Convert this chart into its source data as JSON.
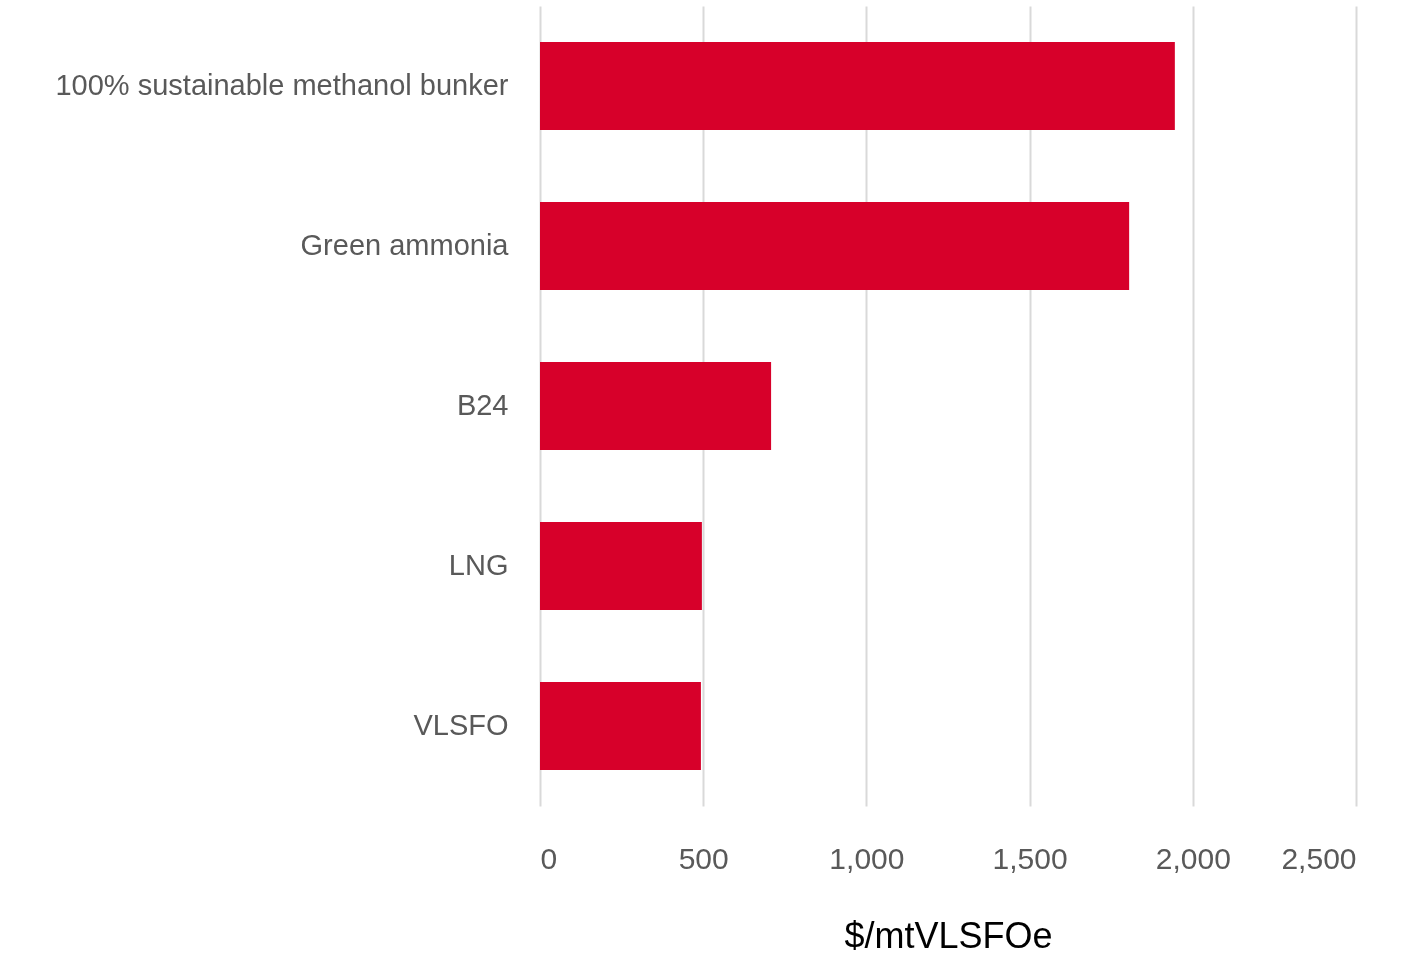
{
  "chart_data": {
    "type": "bar",
    "orientation": "horizontal",
    "xlabel": "$/mtVLSFOe",
    "categories": [
      "100% sustainable methanol bunker",
      "Green ammonia",
      "B24",
      "LNG",
      "VLSFO"
    ],
    "values": [
      1945,
      1805,
      708,
      496,
      493
    ],
    "color": "#d7002a",
    "xlim": [
      0,
      2500
    ],
    "xticks": [
      0,
      500,
      {
        "value": 1000,
        "label": "1,000"
      },
      {
        "value": 1500,
        "label": "1,500"
      },
      {
        "value": 2000,
        "label": "2,000"
      },
      {
        "value": 2500,
        "label": "2,500"
      }
    ],
    "grid": "x"
  }
}
